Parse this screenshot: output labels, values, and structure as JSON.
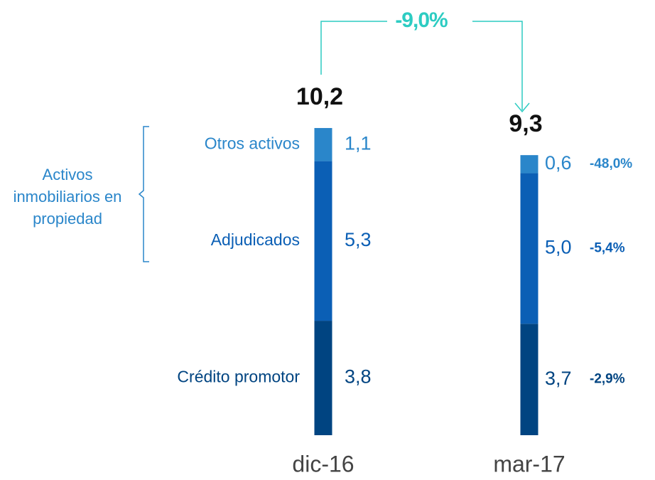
{
  "chart_data": {
    "type": "stacked_bar",
    "categories": [
      "dic-16",
      "mar-17"
    ],
    "series": [
      {
        "name": "Crédito promotor",
        "color": "#004481",
        "values": [
          3.8,
          3.7
        ],
        "value_labels": [
          "3,8",
          "3,7"
        ],
        "change_label": "-2,9%"
      },
      {
        "name": "Adjudicados",
        "color": "#0b5fb5",
        "values": [
          5.3,
          5.0
        ],
        "value_labels": [
          "5,3",
          "5,0"
        ],
        "change_label": "-5,4%"
      },
      {
        "name": "Otros activos",
        "color": "#2a86ca",
        "values": [
          1.1,
          0.6
        ],
        "value_labels": [
          "1,1",
          "0,6"
        ],
        "change_label": "-48,0%"
      }
    ],
    "totals": [
      10.2,
      9.3
    ],
    "total_labels": [
      "10,2",
      "9,3"
    ],
    "total_change_label": "-9,0%",
    "group_label": "Activos inmobiliarios en propiedad"
  }
}
